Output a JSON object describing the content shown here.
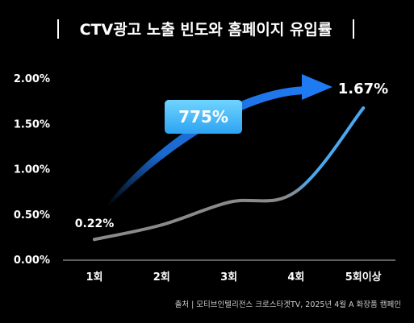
{
  "chart_data": {
    "type": "line",
    "title": "CTV광고 노출 빈도와 홈페이지 유입률",
    "categories": [
      "1회",
      "2회",
      "3회",
      "4회",
      "5회이상"
    ],
    "series": [
      {
        "values": [
          0.22,
          0.38,
          0.63,
          0.75,
          1.67
        ]
      }
    ],
    "highlight_label": "1.67%",
    "start_label": "0.22%",
    "growth_label": "775%",
    "y_ticks": [
      "2.00%",
      "1.50%",
      "1.00%",
      "0.50%",
      "0.00%"
    ],
    "ylim": [
      0,
      2.0
    ],
    "grid": false,
    "colors": {
      "background": "#000000",
      "line_gray": "#8a8a8a",
      "line_blue": "#4aa8f0",
      "arrow_blue": "#1f7bf2",
      "badge_top": "#6fd4ff",
      "badge_bottom": "#2ea3f2"
    }
  },
  "footer": {
    "source": "출처 | 모티브인텔리전스 크로스타겟TV, 2025년 4월 A 화장품 캠페인"
  }
}
